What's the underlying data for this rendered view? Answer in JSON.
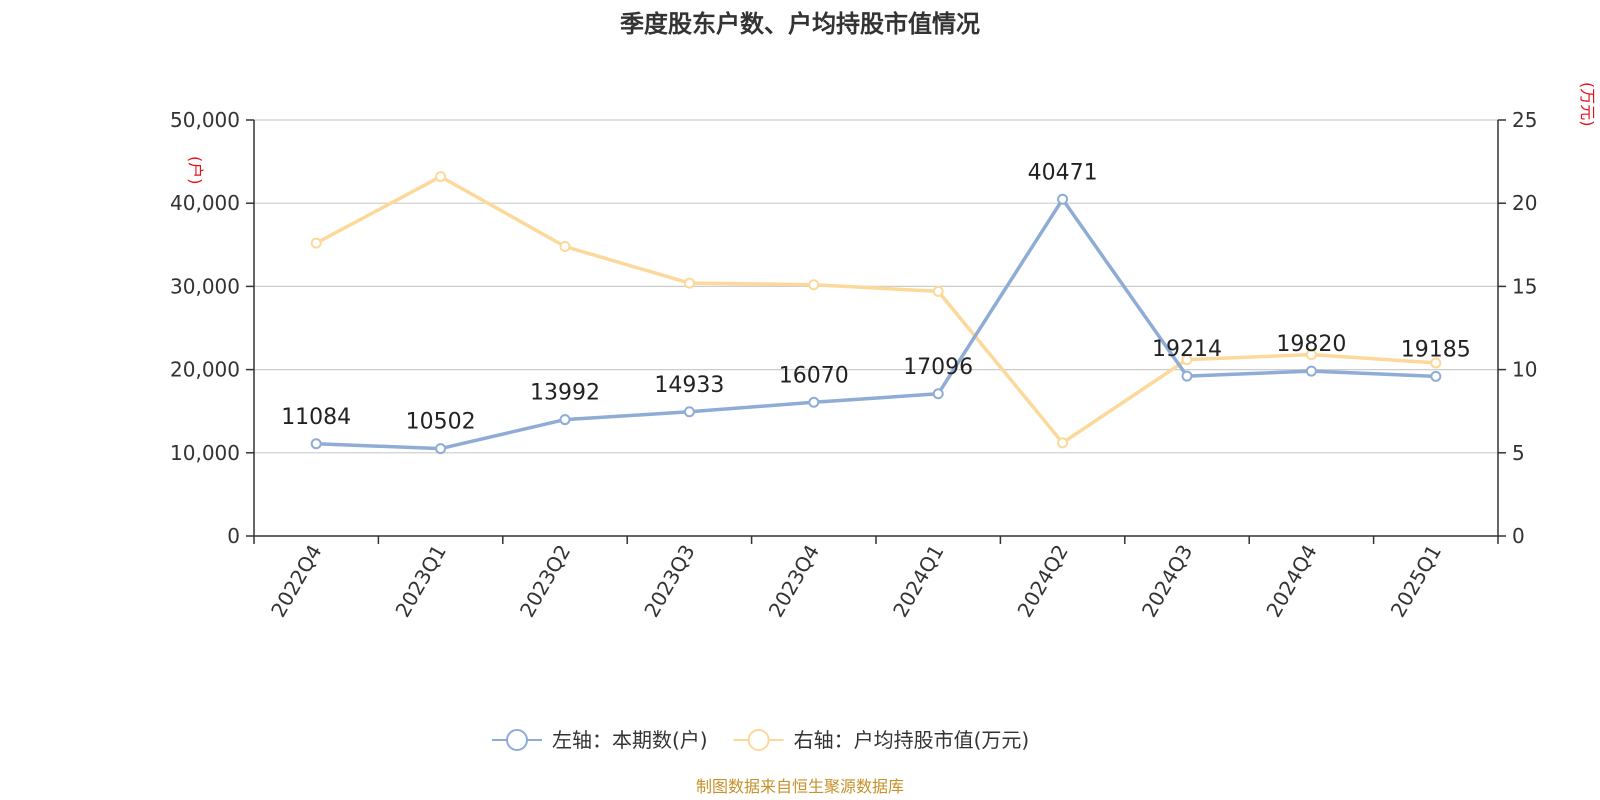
{
  "chart_data": {
    "type": "line",
    "title": "季度股东户数、户均持股市值情况",
    "categories": [
      "2022Q4",
      "2023Q1",
      "2023Q2",
      "2023Q3",
      "2023Q4",
      "2024Q1",
      "2024Q2",
      "2024Q3",
      "2024Q4",
      "2025Q1"
    ],
    "left_axis": {
      "unit_label": "(户)",
      "ylim": [
        0,
        50000
      ],
      "ticks": [
        "0",
        "10,000",
        "20,000",
        "30,000",
        "40,000",
        "50,000"
      ],
      "tick_values": [
        0,
        10000,
        20000,
        30000,
        40000,
        50000
      ]
    },
    "right_axis": {
      "unit_label": "(万元)",
      "ylim": [
        0,
        25
      ],
      "ticks": [
        "0",
        "5",
        "10",
        "15",
        "20",
        "25"
      ],
      "tick_values": [
        0,
        5,
        10,
        15,
        20,
        25
      ]
    },
    "series": [
      {
        "name": "左轴：本期数(户)",
        "axis": "left",
        "color": "#8eacd6",
        "values": [
          11084,
          10502,
          13992,
          14933,
          16070,
          17096,
          40471,
          19214,
          19820,
          19185
        ],
        "show_labels": true
      },
      {
        "name": "右轴：户均持股市值(万元)",
        "axis": "right",
        "color": "#fcd99a",
        "values": [
          17.6,
          21.6,
          17.4,
          15.2,
          15.1,
          14.7,
          5.6,
          10.6,
          10.9,
          10.4
        ],
        "show_labels": false
      }
    ],
    "grid": true,
    "legend_position": "bottom-center",
    "gridline_color": "#cccccc",
    "axis_color": "#333333"
  },
  "source": "制图数据来自恒生聚源数据库"
}
